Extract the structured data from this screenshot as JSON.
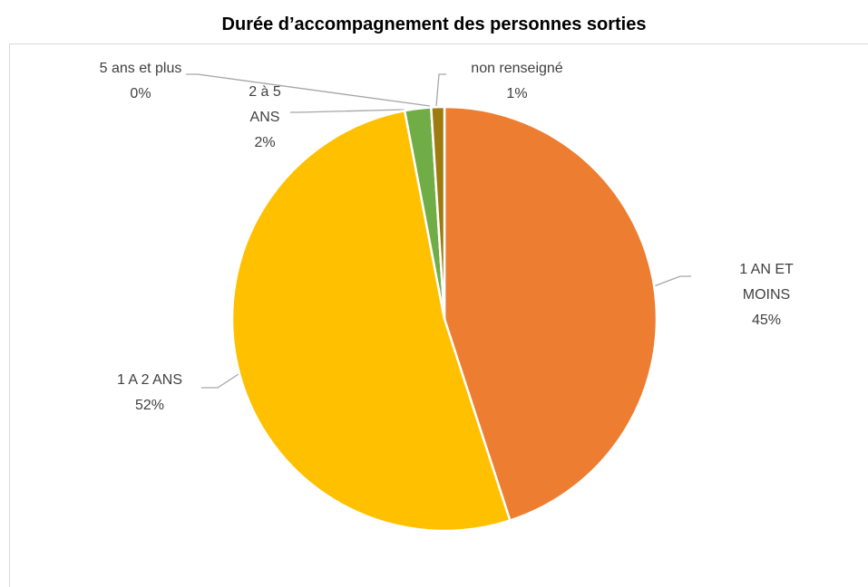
{
  "chart_data": {
    "type": "pie",
    "title": "Durée d’accompagnement des personnes sorties",
    "categories": [
      "1 AN ET MOINS",
      "1 A 2 ANS",
      "2 à 5 ANS",
      "5 ans et plus",
      "non renseigné"
    ],
    "values": [
      45,
      52,
      2,
      0,
      1
    ],
    "value_labels": [
      "45%",
      "52%",
      "2%",
      "0%",
      "1%"
    ],
    "colors": [
      "#ED7D31",
      "#FFC000",
      "#70AD47",
      "#4472C4",
      "#9E7B0F"
    ]
  }
}
